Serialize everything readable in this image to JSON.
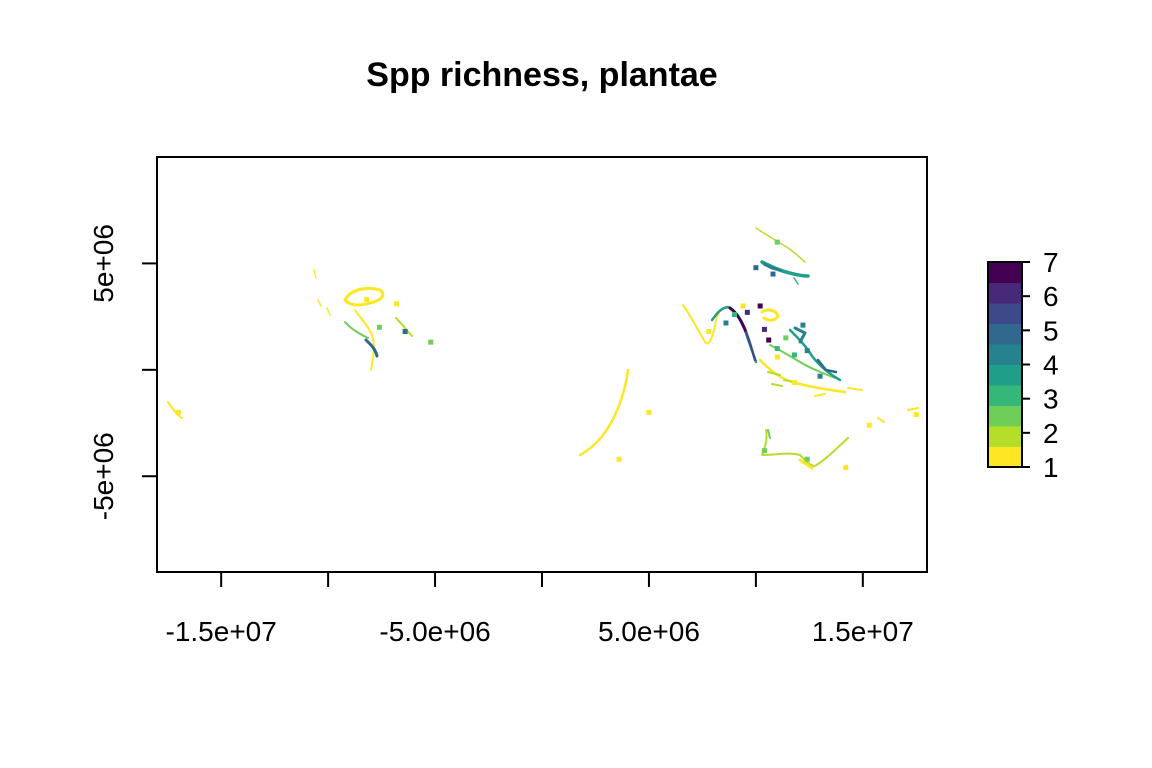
{
  "chart_data": {
    "type": "heatmap",
    "title": "Spp richness, plantae",
    "xlabel": "",
    "ylabel": "",
    "xlim": [
      -18000000,
      18000000
    ],
    "ylim": [
      -9500000,
      10000000
    ],
    "x_ticks": [
      {
        "value": -15000000,
        "label": "-1.5e+07"
      },
      {
        "value": -10000000,
        "label": ""
      },
      {
        "value": -5000000,
        "label": "-5.0e+06"
      },
      {
        "value": 0,
        "label": ""
      },
      {
        "value": 5000000,
        "label": "5.0e+06"
      },
      {
        "value": 10000000,
        "label": ""
      },
      {
        "value": 15000000,
        "label": "1.5e+07"
      }
    ],
    "y_ticks": [
      {
        "value": 5000000,
        "label": "5e+06"
      },
      {
        "value": 0,
        "label": ""
      },
      {
        "value": -5000000,
        "label": "-5e+06"
      }
    ],
    "colorbar": {
      "min": 1,
      "max": 7,
      "tick_labels": [
        "1",
        "2",
        "3",
        "4",
        "5",
        "6",
        "7"
      ],
      "colors": [
        "#FDE725",
        "#B5DE2B",
        "#6ECE58",
        "#35B779",
        "#1F9E89",
        "#26828E",
        "#31688E",
        "#3E4989",
        "#482878",
        "#440154"
      ]
    },
    "grid": false,
    "legend_position": "right",
    "cells": [
      {
        "x": 10200000,
        "y": 3000000,
        "v": 7
      },
      {
        "x": 9600000,
        "y": 2700000,
        "v": 6
      },
      {
        "x": 10400000,
        "y": 1900000,
        "v": 6
      },
      {
        "x": 10600000,
        "y": 1400000,
        "v": 7
      },
      {
        "x": 10000000,
        "y": 4800000,
        "v": 5
      },
      {
        "x": 10800000,
        "y": 4500000,
        "v": 5
      },
      {
        "x": 8600000,
        "y": 2200000,
        "v": 4
      },
      {
        "x": 9000000,
        "y": 2600000,
        "v": 3
      },
      {
        "x": 11000000,
        "y": 1000000,
        "v": 3
      },
      {
        "x": 12400000,
        "y": 900000,
        "v": 4
      },
      {
        "x": 11800000,
        "y": 700000,
        "v": 3
      },
      {
        "x": 13000000,
        "y": -300000,
        "v": 4
      },
      {
        "x": 12200000,
        "y": 2100000,
        "v": 4
      },
      {
        "x": 11400000,
        "y": 1500000,
        "v": 2
      },
      {
        "x": 11000000,
        "y": 600000,
        "v": 1
      },
      {
        "x": 11800000,
        "y": -600000,
        "v": 1
      },
      {
        "x": 12400000,
        "y": -4200000,
        "v": 2
      },
      {
        "x": 14200000,
        "y": -4600000,
        "v": 1
      },
      {
        "x": 10400000,
        "y": -3800000,
        "v": 2
      },
      {
        "x": 9400000,
        "y": 3000000,
        "v": 1
      },
      {
        "x": 7800000,
        "y": 1800000,
        "v": 1
      },
      {
        "x": 11000000,
        "y": 6000000,
        "v": 2
      },
      {
        "x": 3600000,
        "y": -4200000,
        "v": 1
      },
      {
        "x": 5000000,
        "y": -2000000,
        "v": 1
      },
      {
        "x": -6800000,
        "y": 3100000,
        "v": 1
      },
      {
        "x": -8200000,
        "y": 3300000,
        "v": 1
      },
      {
        "x": -6400000,
        "y": 1800000,
        "v": 5
      },
      {
        "x": -7600000,
        "y": 2000000,
        "v": 2
      },
      {
        "x": -5200000,
        "y": 1300000,
        "v": 2
      },
      {
        "x": -17000000,
        "y": -2000000,
        "v": 1
      },
      {
        "x": 17500000,
        "y": -2100000,
        "v": 1
      },
      {
        "x": 15300000,
        "y": -2600000,
        "v": 1
      }
    ]
  }
}
